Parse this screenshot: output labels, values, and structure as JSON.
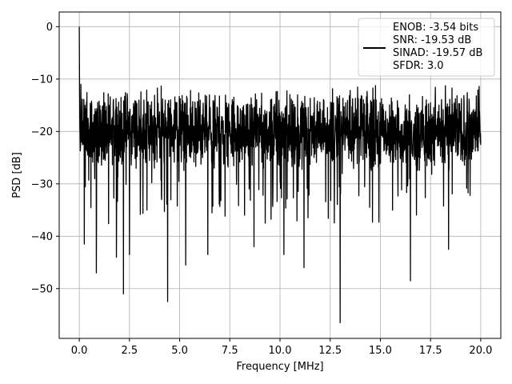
{
  "chart_data": {
    "type": "line",
    "title": "",
    "xlabel": "Frequency [MHz]",
    "ylabel": "PSD [dB]",
    "xlim": [
      -1.0,
      21.0
    ],
    "ylim": [
      -59.5,
      2.8
    ],
    "xticks": [
      0.0,
      2.5,
      5.0,
      7.5,
      10.0,
      12.5,
      15.0,
      17.5,
      20.0
    ],
    "xtick_labels": [
      "0.0",
      "2.5",
      "5.0",
      "7.5",
      "10.0",
      "12.5",
      "15.0",
      "17.5",
      "20.0"
    ],
    "yticks": [
      0,
      -10,
      -20,
      -30,
      -40,
      -50
    ],
    "ytick_labels": [
      "0",
      "−10",
      "−20",
      "−30",
      "−40",
      "−50"
    ],
    "grid": true,
    "legend_position": "top-right",
    "legend_lines": [
      "ENOB: -3.54 bits",
      "SNR: -19.53 dB",
      "SINAD: -19.57 dB",
      "SFDR: 3.0"
    ],
    "series": [
      {
        "color": "#000000",
        "x_range": [
          0.0,
          20.0
        ],
        "points_count": 2000,
        "noise_floor_db": -20.0,
        "noise_band_db": [
          -13,
          -29
        ],
        "peak": {
          "x": 0.0,
          "y": 0.0
        },
        "dips": [
          {
            "x": 0.08,
            "y": -11.0
          },
          {
            "x": 0.25,
            "y": -41.5
          },
          {
            "x": 0.85,
            "y": -47.0
          },
          {
            "x": 1.85,
            "y": -44.0
          },
          {
            "x": 2.2,
            "y": -51.0
          },
          {
            "x": 2.5,
            "y": -43.5
          },
          {
            "x": 4.4,
            "y": -52.5
          },
          {
            "x": 5.3,
            "y": -45.5
          },
          {
            "x": 6.4,
            "y": -43.5
          },
          {
            "x": 8.7,
            "y": -42.0
          },
          {
            "x": 10.2,
            "y": -43.5
          },
          {
            "x": 11.2,
            "y": -46.0
          },
          {
            "x": 13.0,
            "y": -56.5
          },
          {
            "x": 16.5,
            "y": -48.5
          },
          {
            "x": 18.4,
            "y": -42.5
          }
        ]
      }
    ]
  }
}
